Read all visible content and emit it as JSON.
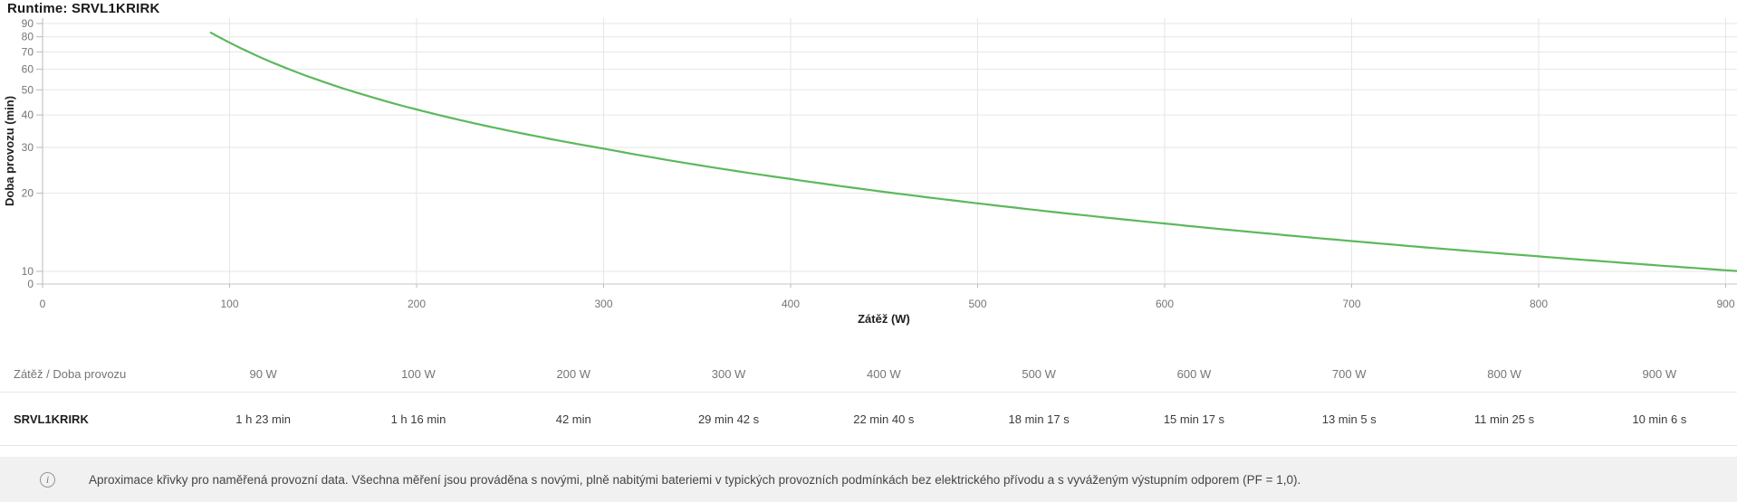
{
  "title": "Runtime: SRVL1KRIRK",
  "chart_data": {
    "type": "line",
    "title": "Runtime: SRVL1KRIRK",
    "xlabel": "Zátěž (W)",
    "ylabel": "Doba provozu (min)",
    "x_ticks": [
      0,
      100,
      200,
      300,
      400,
      500,
      600,
      700,
      800,
      900
    ],
    "y_ticks": [
      90,
      80,
      70,
      60,
      50,
      40,
      30,
      20,
      10,
      0
    ],
    "y_scale": "log",
    "xlim": [
      0,
      906
    ],
    "ylim": [
      10,
      90
    ],
    "grid": true,
    "legend": "none",
    "line_color": "#5cb85c",
    "series": [
      {
        "name": "SRVL1KRIRK",
        "x_watts": [
          90,
          100,
          200,
          300,
          400,
          500,
          600,
          700,
          800,
          900
        ],
        "y_minutes": [
          83,
          76,
          42,
          29.7,
          22.67,
          18.28,
          15.28,
          13.08,
          11.42,
          10.1
        ]
      }
    ]
  },
  "table": {
    "corner_label": "Zátěž / Doba provozu",
    "row_label": "SRVL1KRIRK",
    "headers": [
      "90 W",
      "100 W",
      "200 W",
      "300 W",
      "400 W",
      "500 W",
      "600 W",
      "700 W",
      "800 W",
      "900 W"
    ],
    "values": [
      "1 h 23 min",
      "1 h 16 min",
      "42 min",
      "29 min 42 s",
      "22 min 40 s",
      "18 min 17 s",
      "15 min 17 s",
      "13 min 5 s",
      "11 min 25 s",
      "10 min 6 s"
    ]
  },
  "footnote": {
    "icon": "i",
    "text": "Aproximace křivky pro naměřená provozní data. Všechna měření jsou prováděna s novými, plně nabitými bateriemi v typických provozních podmínkách bez elektrického přívodu a s vyváženým výstupním odporem (PF = 1,0)."
  },
  "colors": {
    "line": "#5cb85c",
    "grid": "#e6e6e6",
    "axis": "#b9b9b9",
    "tick_label": "#757575",
    "axis_title": "#202020",
    "footnote_bg": "#f1f1f1"
  }
}
